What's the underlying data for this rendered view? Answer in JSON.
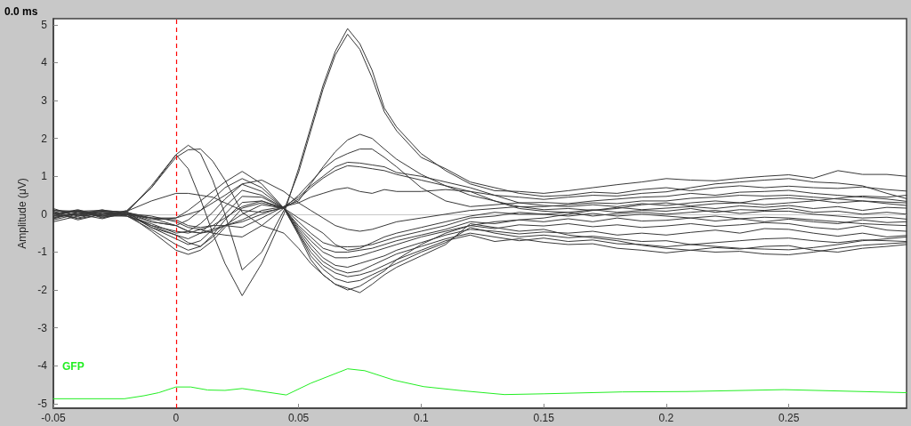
{
  "chart_data": {
    "type": "line",
    "title": "0.0 ms",
    "ylabel": "Amplitude (μV)",
    "x": [
      -0.05,
      -0.04,
      -0.03,
      -0.02,
      -0.01,
      0,
      0.005,
      0.01,
      0.015,
      0.02,
      0.027,
      0.035,
      0.044,
      0.05,
      0.055,
      0.06,
      0.065,
      0.07,
      0.075,
      0.08,
      0.085,
      0.09,
      0.1,
      0.11,
      0.12,
      0.13,
      0.14,
      0.15,
      0.16,
      0.17,
      0.18,
      0.19,
      0.2,
      0.21,
      0.22,
      0.23,
      0.24,
      0.25,
      0.26,
      0.27,
      0.28,
      0.29,
      0.298
    ],
    "xlim": [
      -0.05,
      0.298
    ],
    "xticks": [
      -0.05,
      0,
      0.05,
      0.1,
      0.15,
      0.2,
      0.25
    ],
    "ylim": [
      -5.12,
      5.16
    ],
    "yticks": [
      -5,
      -4,
      -3,
      -2,
      -1,
      0,
      1,
      2,
      3,
      4,
      5
    ],
    "grid": false,
    "legend": false,
    "ref_lines": [
      {
        "axis": "y",
        "value": 0,
        "color": "#c8c8c8",
        "line_style": "solid"
      },
      {
        "axis": "x",
        "value": 0,
        "color": "#ff0000",
        "line_style": "dashed"
      }
    ],
    "series": [
      {
        "color": "#383838",
        "values": [
          0.05,
          0.0,
          0.08,
          0.05,
          0.75,
          1.57,
          1.2,
          0.4,
          -0.5,
          -1.3,
          -2.15,
          -1.3,
          0.0,
          1.2,
          2.3,
          3.4,
          4.3,
          4.9,
          4.5,
          3.8,
          2.8,
          2.3,
          1.6,
          1.15,
          0.8,
          0.62,
          0.6,
          0.55,
          0.62,
          0.7,
          0.78,
          0.85,
          0.94,
          0.9,
          0.88,
          0.95,
          1.0,
          1.04,
          0.95,
          1.15,
          1.05,
          1.05,
          1.0
        ]
      },
      {
        "color": "#383838",
        "values": [
          -0.05,
          0.1,
          0.0,
          0.08,
          0.7,
          1.57,
          1.82,
          1.6,
          0.9,
          0.0,
          -1.47,
          -1.0,
          0.1,
          1.1,
          2.2,
          3.3,
          4.2,
          4.75,
          4.35,
          3.6,
          2.7,
          2.2,
          1.5,
          1.2,
          0.85,
          0.7,
          0.55,
          0.47,
          0.5,
          0.58,
          0.55,
          0.65,
          0.7,
          0.62,
          0.7,
          0.75,
          0.7,
          0.74,
          0.7,
          0.68,
          0.72,
          0.65,
          0.61
        ]
      },
      {
        "color": "#383838",
        "values": [
          0.1,
          0.05,
          -0.05,
          0.1,
          0.7,
          1.5,
          1.7,
          1.72,
          1.4,
          0.9,
          0.05,
          -0.3,
          -0.5,
          -0.9,
          -1.3,
          -1.6,
          -1.85,
          -2.0,
          -1.9,
          -1.7,
          -1.5,
          -1.2,
          -0.8,
          -0.5,
          -0.3,
          -0.2,
          -0.15,
          -0.1,
          0.0,
          0.1,
          0.15,
          0.25,
          0.3,
          0.22,
          0.28,
          0.3,
          0.25,
          0.3,
          0.35,
          0.42,
          0.48,
          0.45,
          0.5
        ]
      },
      {
        "color": "#383838",
        "values": [
          0.0,
          -0.1,
          0.05,
          0.0,
          -0.1,
          -0.15,
          -0.3,
          -0.35,
          -0.3,
          -0.3,
          -0.35,
          -0.1,
          0.2,
          0.35,
          0.8,
          1.25,
          1.65,
          1.96,
          2.11,
          2.0,
          1.72,
          1.45,
          1.05,
          0.75,
          0.6,
          0.5,
          0.45,
          0.39,
          0.45,
          0.5,
          0.48,
          0.55,
          0.59,
          0.7,
          0.8,
          0.85,
          0.9,
          0.94,
          0.85,
          0.82,
          0.75,
          0.55,
          0.41
        ]
      },
      {
        "color": "#383838",
        "values": [
          -0.1,
          0.05,
          -0.05,
          0.02,
          -0.05,
          -0.2,
          -0.35,
          -0.4,
          -0.5,
          -0.55,
          -0.6,
          -0.3,
          0.16,
          0.5,
          0.85,
          1.2,
          1.45,
          1.6,
          1.72,
          1.72,
          1.5,
          1.25,
          0.7,
          0.35,
          0.2,
          0.25,
          0.3,
          0.31,
          0.28,
          0.35,
          0.4,
          0.45,
          0.47,
          0.55,
          0.5,
          0.58,
          0.6,
          0.63,
          0.55,
          0.5,
          0.45,
          0.4,
          0.34
        ]
      },
      {
        "color": "#383838",
        "values": [
          0.12,
          -0.05,
          0.1,
          0.05,
          -0.2,
          -0.3,
          -0.45,
          -0.5,
          -0.45,
          -0.3,
          -0.15,
          0.1,
          0.2,
          0.45,
          0.75,
          1.0,
          1.25,
          1.37,
          1.35,
          1.3,
          1.25,
          1.1,
          1.0,
          0.85,
          0.7,
          0.5,
          0.3,
          0.23,
          0.2,
          0.25,
          0.2,
          0.28,
          0.23,
          0.3,
          0.35,
          0.3,
          0.4,
          0.43,
          0.38,
          0.3,
          0.35,
          0.28,
          0.23
        ]
      },
      {
        "color": "#383838",
        "values": [
          0.0,
          0.1,
          -0.1,
          0.08,
          0.35,
          0.55,
          0.55,
          0.5,
          0.45,
          0.3,
          0.1,
          0.05,
          0.16,
          0.4,
          0.7,
          0.95,
          1.15,
          1.28,
          1.25,
          1.2,
          1.15,
          1.05,
          0.9,
          0.75,
          0.5,
          0.35,
          0.2,
          0.12,
          0.15,
          0.1,
          0.18,
          0.12,
          0.16,
          0.2,
          0.15,
          0.22,
          0.18,
          0.23,
          0.15,
          0.2,
          0.1,
          0.18,
          0.16
        ]
      },
      {
        "color": "#383838",
        "values": [
          -0.15,
          0.0,
          0.05,
          -0.02,
          -0.1,
          -0.3,
          -0.45,
          -0.5,
          -0.4,
          -0.3,
          -0.2,
          0.0,
          0.2,
          0.3,
          0.45,
          0.55,
          0.65,
          0.7,
          0.6,
          0.55,
          0.65,
          0.6,
          0.6,
          0.65,
          0.6,
          0.35,
          0.15,
          0.08,
          0.05,
          0.12,
          0.05,
          0.1,
          0.08,
          0.15,
          0.05,
          0.12,
          0.1,
          0.16,
          0.05,
          0.08,
          0.0,
          0.05,
          0.0
        ]
      },
      {
        "color": "#383838",
        "values": [
          0.05,
          -0.15,
          0.0,
          0.05,
          -0.15,
          -0.1,
          0.1,
          0.35,
          0.6,
          0.85,
          1.13,
          0.8,
          0.16,
          -0.2,
          -0.5,
          -0.75,
          -0.85,
          -0.86,
          -0.85,
          -0.8,
          -0.7,
          -0.6,
          -0.45,
          -0.3,
          -0.1,
          -0.05,
          0.05,
          0.0,
          0.05,
          -0.05,
          0.02,
          0.05,
          0.0,
          0.05,
          0.1,
          0.02,
          0.08,
          0.08,
          0.0,
          -0.05,
          -0.1,
          -0.08,
          -0.13
        ]
      },
      {
        "color": "#383838",
        "values": [
          0.1,
          0.08,
          -0.08,
          0.0,
          -0.2,
          -0.3,
          -0.15,
          0.1,
          0.4,
          0.7,
          0.94,
          0.7,
          0.16,
          -0.3,
          -0.6,
          -0.9,
          -1.0,
          -1.0,
          -0.95,
          -0.9,
          -0.8,
          -0.7,
          -0.55,
          -0.4,
          -0.2,
          -0.25,
          -0.15,
          -0.2,
          -0.12,
          -0.2,
          -0.1,
          -0.18,
          -0.16,
          -0.1,
          -0.18,
          -0.12,
          -0.2,
          -0.13,
          -0.2,
          -0.25,
          -0.15,
          -0.22,
          -0.2
        ]
      },
      {
        "color": "#383838",
        "values": [
          -0.05,
          0.0,
          0.12,
          -0.05,
          -0.25,
          -0.5,
          -0.45,
          -0.25,
          0.05,
          0.4,
          0.79,
          0.6,
          0.16,
          -0.35,
          -0.7,
          -1.0,
          -1.15,
          -1.15,
          -1.1,
          -1.0,
          -0.9,
          -0.8,
          -0.6,
          -0.45,
          -0.3,
          -0.38,
          -0.28,
          -0.31,
          -0.25,
          -0.33,
          -0.28,
          -0.35,
          -0.31,
          -0.25,
          -0.32,
          -0.28,
          -0.22,
          -0.25,
          -0.35,
          -0.4,
          -0.3,
          -0.42,
          -0.45
        ]
      },
      {
        "color": "#383838",
        "values": [
          0.08,
          -0.12,
          0.0,
          0.02,
          -0.3,
          -0.55,
          -0.65,
          -0.5,
          -0.2,
          0.2,
          0.63,
          0.5,
          0.16,
          -0.4,
          -0.8,
          -1.15,
          -1.35,
          -1.4,
          -1.3,
          -1.2,
          -1.1,
          -0.95,
          -0.75,
          -0.55,
          -0.4,
          -0.45,
          -0.52,
          -0.47,
          -0.5,
          -0.45,
          -0.55,
          -0.5,
          -0.55,
          -0.48,
          -0.42,
          -0.5,
          -0.38,
          -0.4,
          -0.5,
          -0.58,
          -0.5,
          -0.6,
          -0.56
        ]
      },
      {
        "color": "#383838",
        "values": [
          -0.12,
          0.05,
          0.08,
          0.0,
          -0.35,
          -0.65,
          -0.8,
          -0.7,
          -0.4,
          0.0,
          0.47,
          0.45,
          0.16,
          -0.45,
          -0.9,
          -1.25,
          -1.45,
          -1.55,
          -1.5,
          -1.35,
          -1.2,
          -1.05,
          -0.85,
          -0.65,
          -0.5,
          -0.6,
          -0.7,
          -0.63,
          -0.72,
          -0.68,
          -0.78,
          -0.8,
          -0.86,
          -0.8,
          -0.75,
          -0.7,
          -0.65,
          -0.63,
          -0.7,
          -0.75,
          -0.68,
          -0.7,
          -0.72
        ]
      },
      {
        "color": "#383838",
        "values": [
          0.0,
          0.12,
          -0.05,
          -0.05,
          -0.4,
          -0.8,
          -0.95,
          -0.85,
          -0.55,
          -0.15,
          0.31,
          0.35,
          0.16,
          -0.5,
          -1.0,
          -1.35,
          -1.55,
          -1.65,
          -1.6,
          -1.5,
          -1.35,
          -1.2,
          -0.95,
          -0.7,
          -0.55,
          -0.72,
          -0.65,
          -0.74,
          -0.8,
          -0.78,
          -0.9,
          -0.95,
          -1.02,
          -0.95,
          -0.88,
          -0.92,
          -0.85,
          -0.83,
          -0.95,
          -1.0,
          -0.9,
          -0.85,
          -0.8
        ]
      },
      {
        "color": "#383838",
        "values": [
          0.15,
          -0.05,
          0.05,
          0.0,
          -0.45,
          -0.95,
          -1.06,
          -0.95,
          -0.7,
          -0.35,
          0.16,
          0.3,
          0.16,
          -0.5,
          -1.1,
          -1.45,
          -1.7,
          -1.8,
          -1.75,
          -1.6,
          -1.45,
          -1.3,
          -1.0,
          -0.75,
          -0.35,
          -0.5,
          -0.6,
          -0.55,
          -0.62,
          -0.58,
          -0.65,
          -0.72,
          -0.7,
          -0.8,
          -0.85,
          -0.9,
          -0.92,
          -0.94,
          -0.88,
          -0.8,
          -0.7,
          -0.65,
          -0.6
        ]
      },
      {
        "color": "#383838",
        "values": [
          -0.08,
          0.0,
          -0.12,
          0.05,
          -0.35,
          -0.55,
          -0.75,
          -0.85,
          -0.6,
          -0.3,
          0.0,
          0.25,
          0.16,
          -0.55,
          -1.2,
          -1.6,
          -1.85,
          -1.95,
          -2.07,
          -1.85,
          -1.6,
          -1.4,
          -1.1,
          -0.8,
          -0.25,
          -0.35,
          -0.45,
          -0.4,
          -0.55,
          -0.62,
          -0.7,
          -0.82,
          -0.9,
          -0.95,
          -1.0,
          -0.98,
          -1.05,
          -1.07,
          -1.0,
          -0.9,
          -0.82,
          -0.78,
          -0.75
        ]
      },
      {
        "color": "#383838",
        "values": [
          0.0,
          0.08,
          0.1,
          0.05,
          -0.1,
          -0.1,
          0.0,
          0.1,
          0.3,
          0.5,
          0.8,
          0.9,
          0.6,
          0.3,
          0.1,
          -0.1,
          -0.3,
          -0.4,
          -0.45,
          -0.4,
          -0.3,
          -0.2,
          -0.1,
          0.0,
          0.1,
          0.15,
          0.2,
          0.2,
          0.25,
          0.3,
          0.28,
          0.35,
          0.35,
          0.42,
          0.45,
          0.5,
          0.48,
          0.5,
          0.45,
          0.4,
          0.35,
          0.32,
          0.3
        ]
      },
      {
        "color": "#383838",
        "values": [
          -0.2,
          -0.05,
          0.0,
          -0.05,
          -0.3,
          -0.45,
          -0.5,
          -0.4,
          -0.3,
          -0.1,
          0.2,
          0.35,
          0.16,
          -0.1,
          -0.3,
          -0.5,
          -0.8,
          -0.95,
          -0.9,
          -0.75,
          -0.6,
          -0.5,
          -0.35,
          -0.2,
          -0.05,
          0.05,
          0.0,
          0.0,
          -0.05,
          0.02,
          -0.05,
          0.0,
          -0.05,
          -0.1,
          -0.05,
          -0.12,
          -0.08,
          -0.1,
          -0.15,
          -0.2,
          -0.25,
          -0.28,
          -0.3
        ]
      },
      {
        "name": "GFP",
        "color": "#22ee22",
        "x": [
          -0.05,
          -0.021,
          -0.013,
          -0.007,
          0,
          0.006,
          0.013,
          0.02,
          0.027,
          0.045,
          0.055,
          0.07,
          0.077,
          0.089,
          0.101,
          0.117,
          0.134,
          0.15,
          0.182,
          0.208,
          0.248,
          0.298
        ],
        "values": [
          -4.87,
          -4.87,
          -4.79,
          -4.71,
          -4.56,
          -4.56,
          -4.64,
          -4.65,
          -4.6,
          -4.77,
          -4.46,
          -4.08,
          -4.13,
          -4.38,
          -4.55,
          -4.66,
          -4.76,
          -4.74,
          -4.69,
          -4.68,
          -4.63,
          -4.71
        ]
      }
    ]
  }
}
